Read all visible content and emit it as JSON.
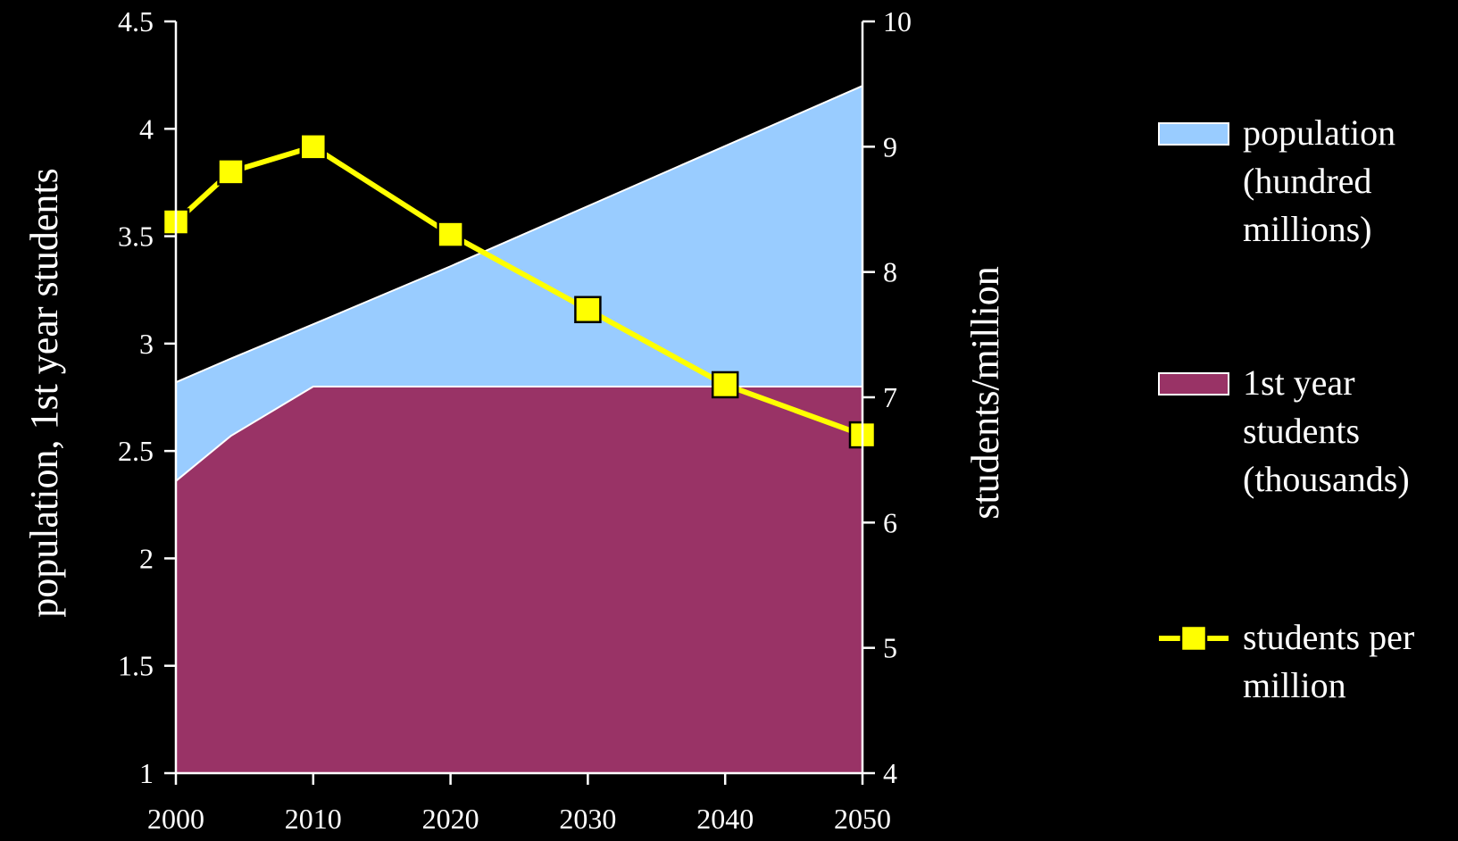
{
  "colors": {
    "background": "#000000",
    "population": "#99CCFF",
    "students": "#993366",
    "ratio": "#FFFF00",
    "axis": "#FFFFFF"
  },
  "chart_data": {
    "type": "area",
    "x": [
      2000,
      2004,
      2010,
      2020,
      2030,
      2040,
      2050
    ],
    "series": [
      {
        "name": "population (hundred millions)",
        "legend_lines": [
          "population",
          "(hundred",
          "millions)"
        ],
        "kind": "area",
        "axis": "left",
        "color": "#99CCFF",
        "values": [
          2.82,
          2.93,
          3.09,
          3.36,
          3.64,
          3.92,
          4.2
        ]
      },
      {
        "name": "1st year students (thousands)",
        "legend_lines": [
          "1st year",
          "students",
          "(thousands)"
        ],
        "kind": "area",
        "axis": "left",
        "color": "#993366",
        "values": [
          2.36,
          2.57,
          2.8,
          2.8,
          2.8,
          2.8,
          2.8
        ]
      },
      {
        "name": "students per million",
        "legend_lines": [
          "students per",
          "million"
        ],
        "kind": "line",
        "marker": "square",
        "axis": "right",
        "color": "#FFFF00",
        "values": [
          8.4,
          8.8,
          9.0,
          8.3,
          7.7,
          7.1,
          6.7
        ]
      }
    ],
    "ylabel": "population, 1st year students",
    "y2label": "students/million",
    "ylim": [
      1,
      4.5
    ],
    "y2lim": [
      4,
      10
    ],
    "xlim": [
      2000,
      2050
    ],
    "xticks": [
      "2000",
      "2010",
      "2020",
      "2030",
      "2040",
      "2050"
    ],
    "yticks": [
      "1",
      "1.5",
      "2",
      "2.5",
      "3",
      "3.5",
      "4",
      "4.5"
    ],
    "y2ticks": [
      "4",
      "5",
      "6",
      "7",
      "8",
      "9",
      "10"
    ],
    "grid": false,
    "legend_position": "right"
  }
}
